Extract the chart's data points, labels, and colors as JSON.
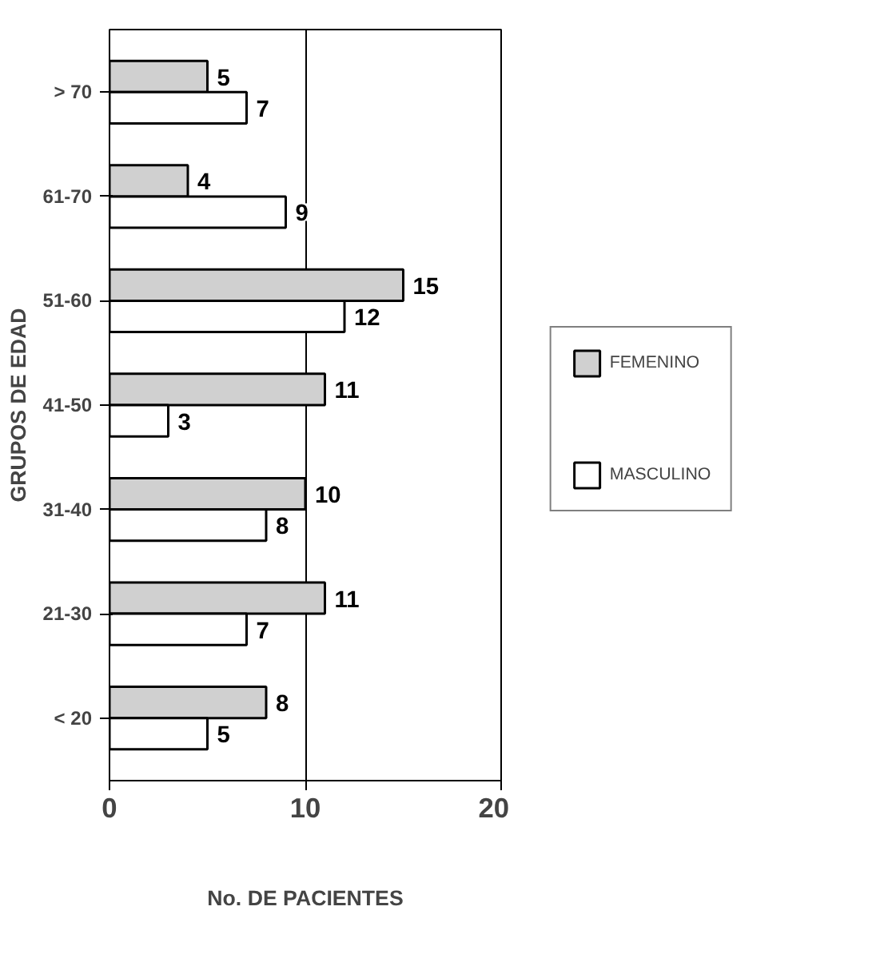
{
  "chart_data": {
    "type": "bar",
    "orientation": "horizontal",
    "xlabel": "No. DE PACIENTES",
    "ylabel": "GRUPOS DE EDAD",
    "categories": [
      "> 70",
      "61-70",
      "51-60",
      "41-50",
      "31-40",
      "21-30",
      "< 20"
    ],
    "series": [
      {
        "name": "FEMENINO",
        "color": "#d0d0d0",
        "values": [
          5,
          4,
          15,
          11,
          10,
          11,
          8
        ]
      },
      {
        "name": "MASCULINO",
        "color": "#ffffff",
        "values": [
          7,
          9,
          12,
          3,
          8,
          7,
          5
        ]
      }
    ],
    "xlim": [
      0,
      20
    ],
    "xticks": [
      0,
      10,
      20
    ],
    "grid": "x",
    "legend": "right",
    "data_labels": true
  }
}
